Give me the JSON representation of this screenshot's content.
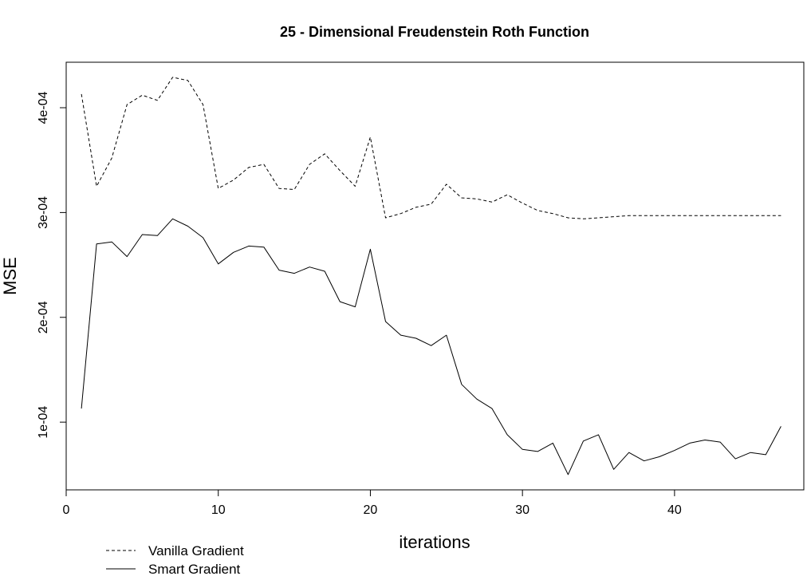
{
  "chart_data": {
    "type": "line",
    "title": "25 - Dimensional Freudenstein Roth Function",
    "xlabel": "iterations",
    "ylabel": "MSE",
    "xlim": [
      0,
      48.5
    ],
    "ylim": [
      3.54e-05,
      0.0004434
    ],
    "x_ticks": [
      0,
      10,
      20,
      30,
      40
    ],
    "x_tick_labels": [
      "0",
      "10",
      "20",
      "30",
      "40"
    ],
    "y_ticks": [
      0.0001,
      0.0002,
      0.0003,
      0.0004
    ],
    "y_tick_labels": [
      "1e-04",
      "2e-04",
      "3e-04",
      "4e-04"
    ],
    "grid": false,
    "legend_position": "bottom-left",
    "x": [
      1,
      2,
      3,
      4,
      5,
      6,
      7,
      8,
      9,
      10,
      11,
      12,
      13,
      14,
      15,
      16,
      17,
      18,
      19,
      20,
      21,
      22,
      23,
      24,
      25,
      26,
      27,
      28,
      29,
      30,
      31,
      32,
      33,
      34,
      35,
      36,
      37,
      38,
      39,
      40,
      41,
      42,
      43,
      44,
      45,
      46,
      47
    ],
    "series": [
      {
        "name": "Vanilla Gradient",
        "line_style": "dashed",
        "color": "#000000",
        "values": [
          0.000413,
          0.000325,
          0.000352,
          0.000403,
          0.000412,
          0.000407,
          0.000429,
          0.000426,
          0.000403,
          0.000323,
          0.000331,
          0.000343,
          0.000346,
          0.000323,
          0.000322,
          0.000346,
          0.000356,
          0.00034,
          0.000325,
          0.000372,
          0.000295,
          0.000299,
          0.000305,
          0.000308,
          0.000327,
          0.000314,
          0.000313,
          0.00031,
          0.000317,
          0.000309,
          0.000302,
          0.000299,
          0.000295,
          0.000294,
          0.000295,
          0.000296,
          0.000297,
          0.000297,
          0.000297,
          0.000297,
          0.000297,
          0.000297,
          0.000297,
          0.000297,
          0.000297,
          0.000297,
          0.000297
        ]
      },
      {
        "name": "Smart Gradient",
        "line_style": "solid",
        "color": "#000000",
        "values": [
          0.000113,
          0.00027,
          0.000272,
          0.000258,
          0.000279,
          0.000278,
          0.000294,
          0.000287,
          0.000276,
          0.000251,
          0.000262,
          0.000268,
          0.000267,
          0.000245,
          0.000242,
          0.000248,
          0.000244,
          0.000215,
          0.00021,
          0.000265,
          0.000196,
          0.000183,
          0.00018,
          0.000173,
          0.000183,
          0.000136,
          0.000122,
          0.000113,
          8.8e-05,
          7.4e-05,
          7.2e-05,
          8e-05,
          5e-05,
          8.2e-05,
          8.8e-05,
          5.5e-05,
          7.1e-05,
          6.3e-05,
          6.7e-05,
          7.3e-05,
          8e-05,
          8.3e-05,
          8.1e-05,
          6.5e-05,
          7.1e-05,
          6.9e-05,
          9.6e-05
        ]
      }
    ]
  }
}
